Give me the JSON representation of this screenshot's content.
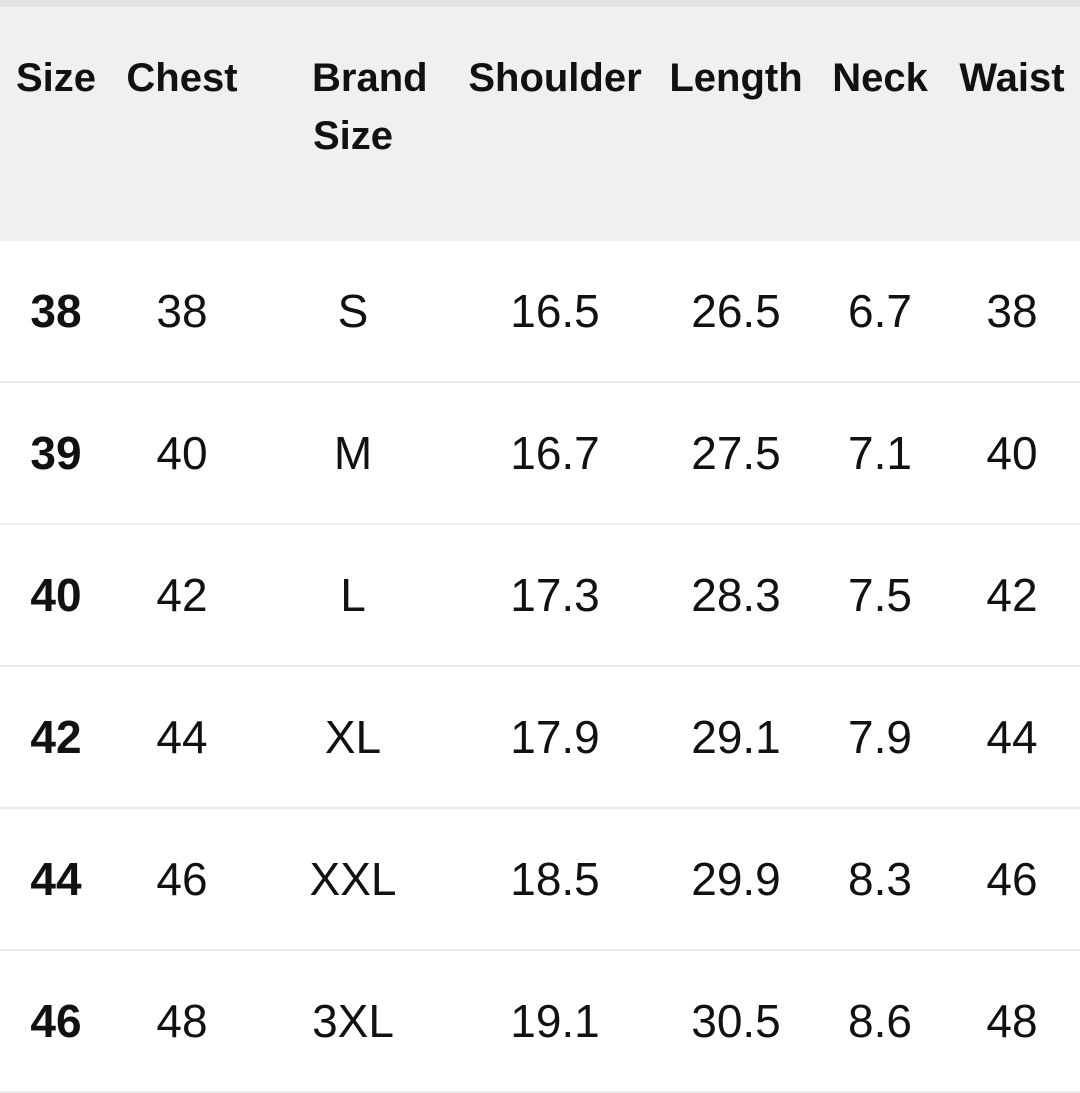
{
  "headers": [
    "Size",
    "Chest",
    "Brand Size",
    "Shoulder",
    "Length",
    "Neck",
    "Waist"
  ],
  "rows": [
    [
      "38",
      "38",
      "S",
      "16.5",
      "26.5",
      "6.7",
      "38"
    ],
    [
      "39",
      "40",
      "M",
      "16.7",
      "27.5",
      "7.1",
      "40"
    ],
    [
      "40",
      "42",
      "L",
      "17.3",
      "28.3",
      "7.5",
      "42"
    ],
    [
      "42",
      "44",
      "XL",
      "17.9",
      "29.1",
      "7.9",
      "44"
    ],
    [
      "44",
      "46",
      "XXL",
      "18.5",
      "29.9",
      "8.3",
      "46"
    ],
    [
      "46",
      "48",
      "3XL",
      "19.1",
      "30.5",
      "8.6",
      "48"
    ]
  ]
}
